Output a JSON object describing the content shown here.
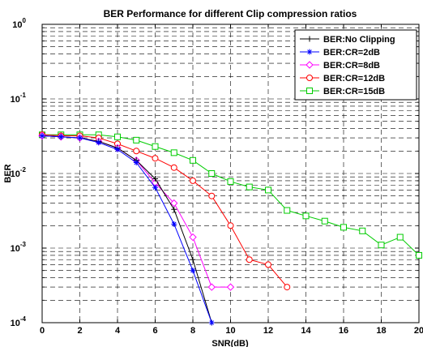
{
  "chart_data": {
    "type": "line",
    "title": "BER Performance for different Clip compression ratios",
    "xlabel": "SNR(dB)",
    "ylabel": "BER",
    "xlim": [
      0,
      20
    ],
    "ylim": [
      0.0001,
      1
    ],
    "yscale": "log",
    "grid": true,
    "grid_style": "dashed",
    "legend_position": "top-right",
    "x_ticks": [
      "0",
      "2",
      "4",
      "6",
      "8",
      "10",
      "12",
      "14",
      "16",
      "18",
      "20"
    ],
    "y_ticks": [
      {
        "base": "10",
        "exp": "-4",
        "value": 0.0001
      },
      {
        "base": "10",
        "exp": "-3",
        "value": 0.001
      },
      {
        "base": "10",
        "exp": "-2",
        "value": 0.01
      },
      {
        "base": "10",
        "exp": "-1",
        "value": 0.1
      },
      {
        "base": "10",
        "exp": "0",
        "value": 1
      }
    ],
    "series": [
      {
        "name": "BER:No Clipping",
        "color": "#000000",
        "marker": "plus",
        "x": [
          0,
          1,
          2,
          3,
          4,
          5,
          6,
          7,
          8,
          9
        ],
        "y": [
          0.032,
          0.031,
          0.03,
          0.027,
          0.022,
          0.015,
          0.0085,
          0.0033,
          0.0007,
          0.0001
        ]
      },
      {
        "name": "BER:CR=2dB",
        "color": "#0000ff",
        "marker": "star",
        "x": [
          0,
          1,
          2,
          3,
          4,
          5,
          6,
          7,
          8,
          9
        ],
        "y": [
          0.032,
          0.031,
          0.03,
          0.026,
          0.021,
          0.014,
          0.0065,
          0.0021,
          0.0005,
          0.0001
        ]
      },
      {
        "name": "BER:CR=8dB",
        "color": "#ff00ff",
        "marker": "diamond",
        "x": [
          0,
          1,
          2,
          3,
          4,
          5,
          6,
          7,
          8,
          9,
          10
        ],
        "y": [
          0.032,
          0.031,
          0.03,
          0.027,
          0.022,
          0.015,
          0.0075,
          0.004,
          0.0014,
          0.0003,
          0.0003
        ]
      },
      {
        "name": "BER:CR=12dB",
        "color": "#ff0000",
        "marker": "circle",
        "x": [
          0,
          1,
          2,
          3,
          4,
          5,
          6,
          7,
          8,
          9,
          10,
          11,
          12,
          13
        ],
        "y": [
          0.033,
          0.032,
          0.032,
          0.03,
          0.025,
          0.02,
          0.016,
          0.012,
          0.008,
          0.005,
          0.002,
          0.0007,
          0.0006,
          0.0003
        ]
      },
      {
        "name": "BER:CR=15dB",
        "color": "#00cc00",
        "marker": "square",
        "x": [
          0,
          1,
          2,
          3,
          4,
          5,
          6,
          7,
          8,
          9,
          10,
          11,
          12,
          13,
          14,
          15,
          16,
          17,
          18,
          19,
          20
        ],
        "y": [
          0.033,
          0.033,
          0.033,
          0.033,
          0.031,
          0.028,
          0.023,
          0.019,
          0.015,
          0.01,
          0.0078,
          0.0066,
          0.006,
          0.0032,
          0.0027,
          0.0023,
          0.0019,
          0.0017,
          0.0011,
          0.0014,
          0.0008
        ]
      }
    ]
  }
}
